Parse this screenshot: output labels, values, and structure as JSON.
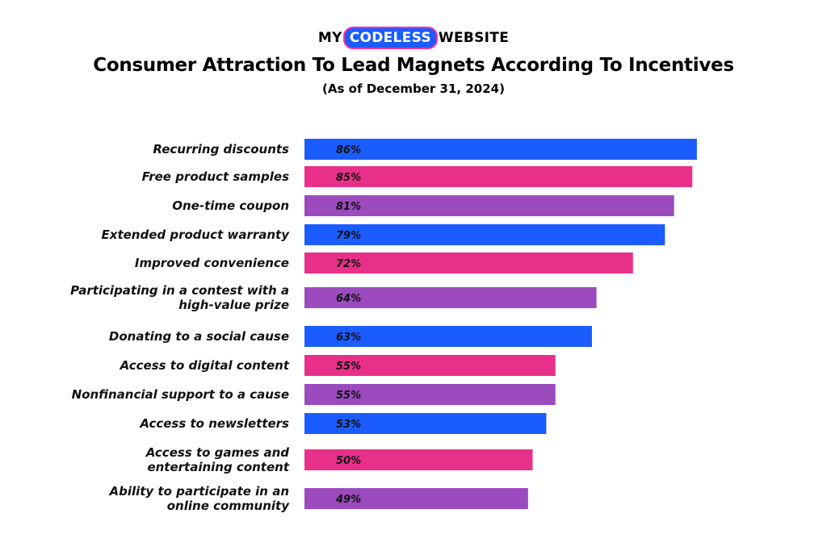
{
  "logo": {
    "part1": "MY",
    "part2": "CODELESS",
    "part3": "WEBSITE"
  },
  "header": {
    "title": "Consumer Attraction To Lead Magnets According To Incentives",
    "subtitle": "(As of December 31, 2024)"
  },
  "colors": {
    "blue": "#1a5cff",
    "pink": "#e8308a",
    "purple": "#9b4bbd"
  },
  "chart_data": {
    "type": "bar",
    "orientation": "horizontal",
    "title": "Consumer Attraction To Lead Magnets According To Incentives",
    "subtitle": "(As of December 31, 2024)",
    "xlim": [
      0,
      100
    ],
    "grid": false,
    "categories": [
      [
        "Recurring discounts"
      ],
      [
        "Free product samples"
      ],
      [
        "One-time coupon"
      ],
      [
        "Extended product warranty"
      ],
      [
        "Improved convenience"
      ],
      [
        "Participating in a contest with a",
        "high-value prize"
      ],
      [
        "Donating to a social cause"
      ],
      [
        "Access to digital content"
      ],
      [
        "Nonfinancial support to a cause"
      ],
      [
        "Access to newsletters"
      ],
      [
        "Access to games and",
        "entertaining content"
      ],
      [
        "Ability to participate in an",
        "online community"
      ]
    ],
    "values": [
      86,
      85,
      81,
      79,
      72,
      64,
      63,
      55,
      55,
      53,
      50,
      49
    ],
    "value_labels": [
      "86%",
      "85%",
      "81%",
      "79%",
      "72%",
      "64%",
      "63%",
      "55%",
      "55%",
      "53%",
      "50%",
      "49%"
    ],
    "bar_colors": [
      "#1a5cff",
      "#e8308a",
      "#9b4bbd",
      "#1a5cff",
      "#e8308a",
      "#9b4bbd",
      "#1a5cff",
      "#e8308a",
      "#9b4bbd",
      "#1a5cff",
      "#e8308a",
      "#9b4bbd"
    ]
  }
}
